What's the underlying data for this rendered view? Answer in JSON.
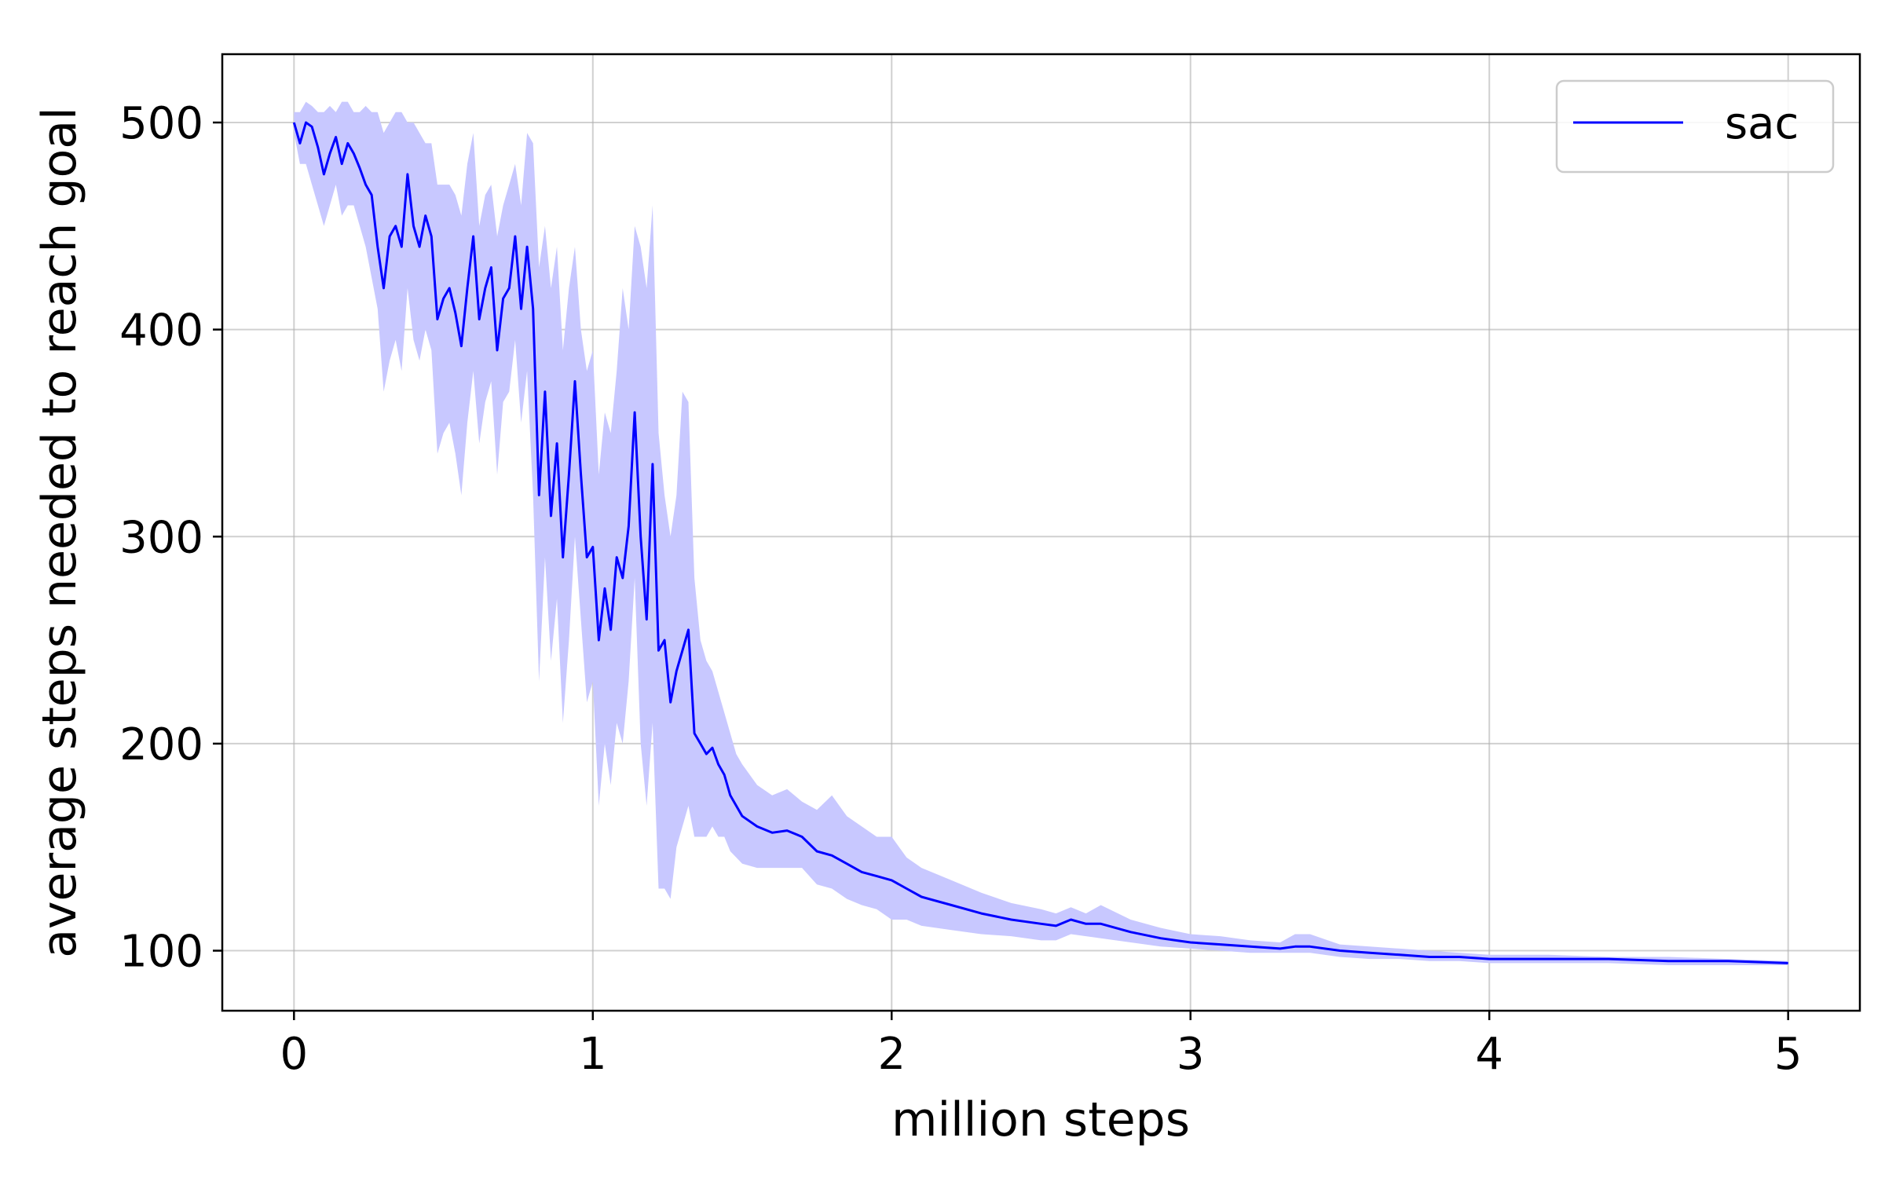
{
  "chart_data": {
    "type": "line",
    "title": "",
    "xlabel": "million steps",
    "ylabel": "average steps needed to reach goal",
    "xlim": [
      -0.24,
      5.24
    ],
    "ylim": [
      71,
      533
    ],
    "xticks": [
      0,
      1,
      2,
      3,
      4,
      5
    ],
    "yticks": [
      100,
      200,
      300,
      400,
      500
    ],
    "grid": true,
    "legend_position": "top-right",
    "line_color": "#0000ff",
    "band_color": "#c8c8ff",
    "series": [
      {
        "name": "sac",
        "x": [
          0.0,
          0.02,
          0.04,
          0.06,
          0.08,
          0.1,
          0.12,
          0.14,
          0.16,
          0.18,
          0.2,
          0.22,
          0.24,
          0.26,
          0.28,
          0.3,
          0.32,
          0.34,
          0.36,
          0.38,
          0.4,
          0.42,
          0.44,
          0.46,
          0.48,
          0.5,
          0.52,
          0.54,
          0.56,
          0.58,
          0.6,
          0.62,
          0.64,
          0.66,
          0.68,
          0.7,
          0.72,
          0.74,
          0.76,
          0.78,
          0.8,
          0.82,
          0.84,
          0.86,
          0.88,
          0.9,
          0.92,
          0.94,
          0.96,
          0.98,
          1.0,
          1.02,
          1.04,
          1.06,
          1.08,
          1.1,
          1.12,
          1.14,
          1.16,
          1.18,
          1.2,
          1.22,
          1.24,
          1.26,
          1.28,
          1.3,
          1.32,
          1.34,
          1.36,
          1.38,
          1.4,
          1.42,
          1.44,
          1.46,
          1.48,
          1.5,
          1.55,
          1.6,
          1.65,
          1.7,
          1.75,
          1.8,
          1.85,
          1.9,
          1.95,
          2.0,
          2.05,
          2.1,
          2.2,
          2.3,
          2.4,
          2.5,
          2.55,
          2.6,
          2.65,
          2.7,
          2.8,
          2.9,
          3.0,
          3.1,
          3.2,
          3.3,
          3.35,
          3.4,
          3.5,
          3.6,
          3.7,
          3.8,
          3.9,
          4.0,
          4.2,
          4.4,
          4.6,
          4.8,
          5.0
        ],
        "mean": [
          500,
          490,
          500,
          498,
          488,
          475,
          485,
          493,
          480,
          490,
          485,
          478,
          470,
          465,
          440,
          420,
          445,
          450,
          440,
          475,
          450,
          440,
          455,
          445,
          405,
          415,
          420,
          408,
          392,
          420,
          445,
          405,
          420,
          430,
          390,
          415,
          420,
          445,
          410,
          440,
          410,
          320,
          370,
          310,
          345,
          290,
          330,
          375,
          330,
          290,
          295,
          250,
          275,
          255,
          290,
          280,
          305,
          360,
          300,
          260,
          335,
          245,
          250,
          220,
          235,
          245,
          255,
          205,
          200,
          195,
          198,
          190,
          185,
          175,
          170,
          165,
          160,
          157,
          158,
          155,
          148,
          146,
          142,
          138,
          136,
          134,
          130,
          126,
          122,
          118,
          115,
          113,
          112,
          115,
          113,
          113,
          109,
          106,
          104,
          103,
          102,
          101,
          102,
          102,
          100,
          99,
          98,
          97,
          97,
          96,
          96,
          96,
          95,
          95,
          94
        ],
        "upper": [
          505,
          505,
          510,
          508,
          505,
          505,
          508,
          505,
          510,
          510,
          505,
          505,
          508,
          505,
          505,
          495,
          500,
          505,
          505,
          500,
          500,
          495,
          490,
          490,
          470,
          470,
          470,
          465,
          455,
          480,
          495,
          450,
          465,
          470,
          445,
          460,
          470,
          480,
          460,
          495,
          490,
          430,
          450,
          420,
          440,
          390,
          420,
          440,
          400,
          380,
          390,
          330,
          360,
          350,
          380,
          420,
          400,
          450,
          440,
          420,
          460,
          350,
          320,
          300,
          320,
          370,
          365,
          280,
          250,
          240,
          235,
          225,
          215,
          205,
          195,
          190,
          180,
          175,
          178,
          172,
          168,
          175,
          165,
          160,
          155,
          155,
          145,
          140,
          134,
          128,
          123,
          120,
          118,
          121,
          118,
          122,
          115,
          111,
          108,
          107,
          105,
          104,
          108,
          108,
          103,
          102,
          101,
          100,
          99,
          98,
          98,
          97,
          97,
          96,
          95
        ],
        "lower": [
          495,
          480,
          480,
          470,
          460,
          450,
          460,
          470,
          455,
          460,
          460,
          450,
          440,
          425,
          410,
          370,
          385,
          395,
          380,
          420,
          395,
          385,
          400,
          390,
          340,
          350,
          355,
          340,
          320,
          355,
          380,
          345,
          365,
          375,
          330,
          365,
          370,
          395,
          355,
          380,
          320,
          230,
          290,
          240,
          270,
          210,
          250,
          300,
          260,
          220,
          230,
          170,
          200,
          180,
          210,
          200,
          230,
          280,
          200,
          170,
          210,
          130,
          130,
          125,
          150,
          160,
          170,
          155,
          155,
          155,
          160,
          155,
          155,
          148,
          145,
          142,
          140,
          140,
          140,
          140,
          132,
          130,
          125,
          122,
          120,
          115,
          115,
          112,
          110,
          108,
          107,
          105,
          105,
          108,
          107,
          106,
          104,
          102,
          101,
          100,
          99,
          99,
          99,
          99,
          97,
          96,
          96,
          95,
          95,
          94,
          94,
          94,
          93,
          93,
          93
        ]
      }
    ]
  }
}
